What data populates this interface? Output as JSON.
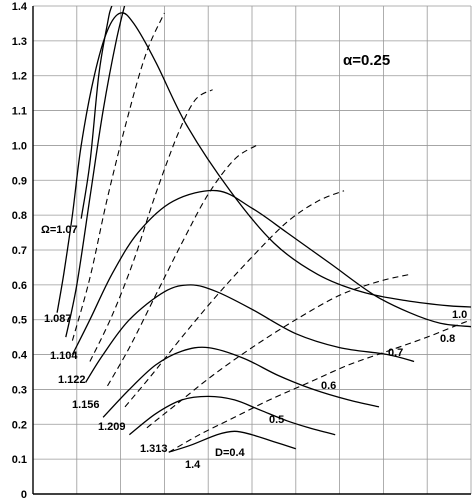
{
  "chart_data": {
    "type": "line",
    "title": "",
    "xlabel": "",
    "ylabel": "",
    "xlim": [
      0,
      10
    ],
    "ylim": [
      0,
      1.4
    ],
    "grid": true,
    "y_ticks": [
      "0",
      "0.1",
      "0.2",
      "0.3",
      "0.4",
      "0.5",
      "0.6",
      "0.7",
      "0.8",
      "0.9",
      "1.0",
      "1.1",
      "1.2",
      "1.3",
      "1.4"
    ],
    "x_ticks": [
      0,
      1,
      2,
      3,
      4,
      5,
      6,
      7,
      8,
      9,
      10
    ],
    "annotations": {
      "alpha": "α=0.25",
      "omega_start": "Ω=1.07",
      "omega_labels": [
        "1.087",
        "1.104",
        "1.122",
        "1.156",
        "1.209",
        "1.313",
        "1.4"
      ],
      "d_labels": [
        "D=0.4",
        "0.5",
        "0.6",
        "0.7",
        "0.8",
        "1.0"
      ]
    },
    "series": [
      {
        "style": "solid",
        "label": "1.07",
        "points": [
          [
            1.1,
            0.79
          ],
          [
            1.3,
            0.95
          ],
          [
            1.5,
            1.2
          ],
          [
            1.7,
            1.35
          ],
          [
            1.8,
            1.4
          ],
          [
            2.0,
            1.45
          ]
        ]
      },
      {
        "style": "solid",
        "label": "1.087",
        "points": [
          [
            0.55,
            0.52
          ],
          [
            0.7,
            0.63
          ],
          [
            0.9,
            0.8
          ],
          [
            1.1,
            1.0
          ],
          [
            1.4,
            1.2
          ],
          [
            1.7,
            1.33
          ],
          [
            2.0,
            1.38
          ],
          [
            2.3,
            1.35
          ],
          [
            2.8,
            1.24
          ],
          [
            3.5,
            1.06
          ],
          [
            4.5,
            0.87
          ],
          [
            5.5,
            0.72
          ],
          [
            6.5,
            0.63
          ],
          [
            7.5,
            0.58
          ],
          [
            8.5,
            0.555
          ],
          [
            9.5,
            0.54
          ],
          [
            10.3,
            0.535
          ]
        ]
      },
      {
        "style": "solid",
        "label": "1.104",
        "points": [
          [
            0.75,
            0.45
          ],
          [
            1.0,
            0.6
          ],
          [
            1.3,
            0.85
          ],
          [
            1.6,
            1.1
          ],
          [
            1.9,
            1.3
          ],
          [
            2.15,
            1.43
          ],
          [
            2.3,
            1.5
          ]
        ]
      },
      {
        "style": "solid",
        "label": "1.122",
        "points": [
          [
            0.9,
            0.4
          ],
          [
            1.3,
            0.5
          ],
          [
            1.8,
            0.63
          ],
          [
            2.4,
            0.75
          ],
          [
            3.2,
            0.84
          ],
          [
            4.2,
            0.87
          ],
          [
            5.0,
            0.82
          ],
          [
            5.8,
            0.75
          ],
          [
            6.8,
            0.66
          ],
          [
            7.8,
            0.57
          ],
          [
            8.6,
            0.52
          ],
          [
            9.3,
            0.49
          ],
          [
            10.0,
            0.48
          ]
        ]
      },
      {
        "style": "solid",
        "label": "1.156",
        "points": [
          [
            1.2,
            0.32
          ],
          [
            1.6,
            0.4
          ],
          [
            2.2,
            0.5
          ],
          [
            3.0,
            0.58
          ],
          [
            3.6,
            0.6
          ],
          [
            4.2,
            0.58
          ],
          [
            5.0,
            0.53
          ],
          [
            6.0,
            0.46
          ],
          [
            7.0,
            0.42
          ],
          [
            8.1,
            0.4
          ],
          [
            8.7,
            0.38
          ]
        ]
      },
      {
        "style": "solid",
        "label": "1.209",
        "points": [
          [
            1.6,
            0.22
          ],
          [
            2.2,
            0.3
          ],
          [
            2.8,
            0.37
          ],
          [
            3.4,
            0.41
          ],
          [
            4.0,
            0.42
          ],
          [
            4.8,
            0.39
          ],
          [
            5.6,
            0.34
          ],
          [
            6.4,
            0.3
          ],
          [
            7.2,
            0.27
          ],
          [
            7.9,
            0.25
          ]
        ]
      },
      {
        "style": "solid",
        "label": "1.313",
        "points": [
          [
            2.2,
            0.17
          ],
          [
            2.8,
            0.23
          ],
          [
            3.4,
            0.27
          ],
          [
            4.0,
            0.28
          ],
          [
            4.6,
            0.27
          ],
          [
            5.2,
            0.24
          ],
          [
            5.8,
            0.21
          ],
          [
            6.3,
            0.19
          ],
          [
            6.9,
            0.17
          ]
        ]
      },
      {
        "style": "solid",
        "label": "1.4",
        "points": [
          [
            3.1,
            0.12
          ],
          [
            3.6,
            0.14
          ],
          [
            4.2,
            0.17
          ],
          [
            4.6,
            0.18
          ],
          [
            5.0,
            0.17
          ],
          [
            5.5,
            0.15
          ],
          [
            6.0,
            0.13
          ]
        ]
      },
      {
        "style": "dashed",
        "label": "D=0.4",
        "points": [
          [
            3.1,
            0.12
          ],
          [
            3.8,
            0.17
          ],
          [
            4.6,
            0.22
          ],
          [
            5.4,
            0.27
          ],
          [
            6.3,
            0.32
          ],
          [
            7.2,
            0.37
          ],
          [
            8.1,
            0.41
          ],
          [
            9.0,
            0.45
          ],
          [
            9.8,
            0.49
          ],
          [
            10.5,
            0.52
          ]
        ]
      },
      {
        "style": "dashed",
        "label": "0.5",
        "points": [
          [
            2.6,
            0.19
          ],
          [
            3.3,
            0.26
          ],
          [
            4.1,
            0.34
          ],
          [
            5.0,
            0.42
          ],
          [
            6.0,
            0.5
          ],
          [
            7.0,
            0.57
          ],
          [
            7.9,
            0.61
          ],
          [
            8.6,
            0.63
          ]
        ]
      },
      {
        "style": "dashed",
        "label": "0.6",
        "points": [
          [
            2.1,
            0.25
          ],
          [
            2.7,
            0.34
          ],
          [
            3.4,
            0.45
          ],
          [
            4.2,
            0.57
          ],
          [
            5.0,
            0.68
          ],
          [
            5.8,
            0.78
          ],
          [
            6.5,
            0.84
          ],
          [
            7.1,
            0.87
          ]
        ]
      },
      {
        "style": "dashed",
        "label": "0.7",
        "points": [
          [
            1.7,
            0.31
          ],
          [
            2.2,
            0.42
          ],
          [
            2.8,
            0.57
          ],
          [
            3.4,
            0.72
          ],
          [
            4.0,
            0.86
          ],
          [
            4.6,
            0.96
          ],
          [
            5.1,
            1.0
          ]
        ]
      },
      {
        "style": "dashed",
        "label": "0.8",
        "points": [
          [
            1.3,
            0.38
          ],
          [
            1.8,
            0.51
          ],
          [
            2.3,
            0.67
          ],
          [
            2.8,
            0.86
          ],
          [
            3.3,
            1.03
          ],
          [
            3.7,
            1.13
          ],
          [
            4.1,
            1.16
          ]
        ]
      },
      {
        "style": "dashed",
        "label": "1.0",
        "points": [
          [
            0.9,
            0.44
          ],
          [
            1.3,
            0.62
          ],
          [
            1.7,
            0.85
          ],
          [
            2.2,
            1.1
          ],
          [
            2.6,
            1.27
          ],
          [
            3.0,
            1.38
          ]
        ]
      }
    ]
  }
}
